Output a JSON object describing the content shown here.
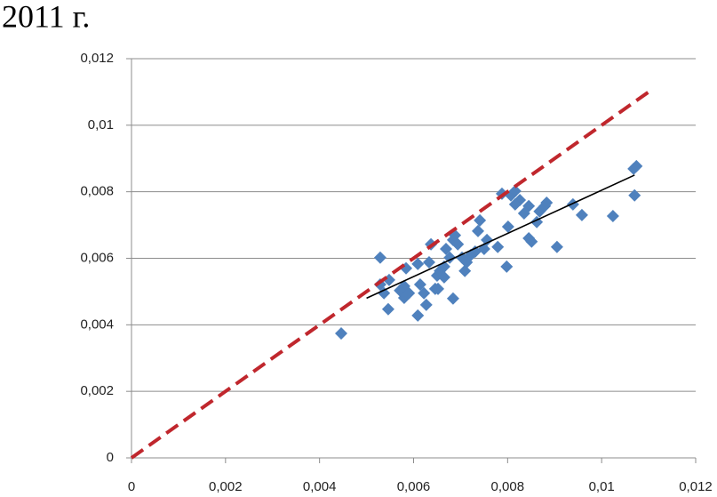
{
  "chart_data": {
    "type": "scatter",
    "title": "2011 г.",
    "xlim": [
      0,
      0.012
    ],
    "ylim": [
      0,
      0.012
    ],
    "xticks": [
      0,
      {
        "value": 0.002,
        "label": "0,002"
      },
      {
        "value": 0.004,
        "label": "0,004"
      },
      {
        "value": 0.006,
        "label": "0,006"
      },
      {
        "value": 0.008,
        "label": "0,008"
      },
      {
        "value": 0.01,
        "label": "0,01"
      },
      {
        "value": 0.012,
        "label": "0,012"
      }
    ],
    "yticks": [
      0,
      {
        "value": 0.002,
        "label": "0,002"
      },
      {
        "value": 0.004,
        "label": "0,004"
      },
      {
        "value": 0.006,
        "label": "0,006"
      },
      {
        "value": 0.008,
        "label": "0,008"
      },
      {
        "value": 0.01,
        "label": "0,01"
      },
      {
        "value": 0.012,
        "label": "0,012"
      }
    ],
    "grid": true,
    "series": [
      {
        "color": "#4f81bd",
        "marker": "diamond",
        "x": [
          0.00446,
          0.00529,
          0.00546,
          0.00548,
          0.00537,
          0.0058,
          0.00584,
          0.00529,
          0.00571,
          0.0058,
          0.0059,
          0.00609,
          0.00614,
          0.00622,
          0.00627,
          0.00633,
          0.00637,
          0.00646,
          0.0065,
          0.00652,
          0.00656,
          0.00665,
          0.00669,
          0.00677,
          0.00684,
          0.00688,
          0.00694,
          0.00703,
          0.00709,
          0.00713,
          0.00722,
          0.00731,
          0.00737,
          0.00741,
          0.0075,
          0.00756,
          0.00779,
          0.00788,
          0.00798,
          0.00801,
          0.00807,
          0.00816,
          0.00826,
          0.00835,
          0.00845,
          0.00845,
          0.00851,
          0.00862,
          0.00868,
          0.00879,
          0.00883,
          0.00905,
          0.00939,
          0.00958,
          0.01024,
          0.01068,
          0.0107,
          0.01074,
          0.00816,
          0.00665,
          0.00609,
          0.00684
        ],
        "values": [
          0.00374,
          0.00602,
          0.00447,
          0.00535,
          0.00495,
          0.00516,
          0.0057,
          0.00521,
          0.00503,
          0.00481,
          0.00495,
          0.00583,
          0.00521,
          0.00495,
          0.0046,
          0.00588,
          0.00642,
          0.00508,
          0.00548,
          0.00508,
          0.00562,
          0.00575,
          0.00628,
          0.00602,
          0.00655,
          0.00669,
          0.00642,
          0.00602,
          0.00562,
          0.00588,
          0.0061,
          0.0062,
          0.00682,
          0.00714,
          0.00628,
          0.00655,
          0.00634,
          0.00794,
          0.00575,
          0.00695,
          0.00789,
          0.00802,
          0.00775,
          0.00735,
          0.00757,
          0.0066,
          0.0065,
          0.00709,
          0.00741,
          0.00757,
          0.00767,
          0.00634,
          0.00762,
          0.0073,
          0.00727,
          0.00869,
          0.00789,
          0.00877,
          0.00762,
          0.00543,
          0.00428,
          0.00479
        ]
      },
      {
        "color": "#c0272d",
        "line": "dashed",
        "x": [
          0,
          0.011
        ],
        "values": [
          0,
          0.011
        ]
      },
      {
        "color": "#000000",
        "line": "solid",
        "x": [
          0.005,
          0.0107
        ],
        "values": [
          0.0048,
          0.0085
        ]
      }
    ]
  }
}
